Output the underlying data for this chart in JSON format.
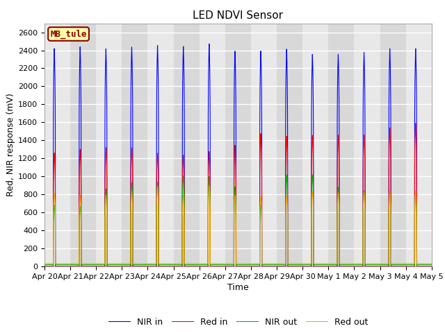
{
  "title": "LED NDVI Sensor",
  "xlabel": "Time",
  "ylabel": "Red, NIR response (mV)",
  "ylim": [
    0,
    2700
  ],
  "yticks": [
    0,
    200,
    400,
    600,
    800,
    1000,
    1200,
    1400,
    1600,
    1800,
    2000,
    2200,
    2400,
    2600
  ],
  "xtick_labels": [
    "Apr 20",
    "Apr 21",
    "Apr 22",
    "Apr 23",
    "Apr 24",
    "Apr 25",
    "Apr 26",
    "Apr 27",
    "Apr 28",
    "Apr 29",
    "Apr 30",
    "May 1",
    "May 2",
    "May 3",
    "May 4",
    "May 5"
  ],
  "label_text": "MB_tule",
  "legend_labels": [
    "Red in",
    "NIR in",
    "Red out",
    "NIR out"
  ],
  "colors": [
    "#ff0000",
    "#0000ff",
    "#ffa500",
    "#00bb00"
  ],
  "num_days": 15,
  "red_in_peaks": [
    1260,
    1300,
    1320,
    1320,
    1260,
    1240,
    1280,
    1350,
    1480,
    1450,
    1460,
    1460,
    1460,
    1540,
    1590
  ],
  "nir_in_peaks": [
    2420,
    2440,
    2420,
    2440,
    2460,
    2450,
    2480,
    2400,
    2400,
    2420,
    2360,
    2360,
    2380,
    2420,
    2420
  ],
  "red_out_peaks": [
    780,
    760,
    760,
    800,
    860,
    760,
    860,
    760,
    750,
    750,
    800,
    790,
    800,
    810,
    810
  ],
  "nir_out_peaks": [
    660,
    650,
    840,
    910,
    920,
    990,
    980,
    870,
    670,
    1000,
    1000,
    860,
    820,
    800,
    790
  ],
  "title_fontsize": 11,
  "axis_label_fontsize": 9,
  "tick_fontsize": 8,
  "legend_fontsize": 9
}
